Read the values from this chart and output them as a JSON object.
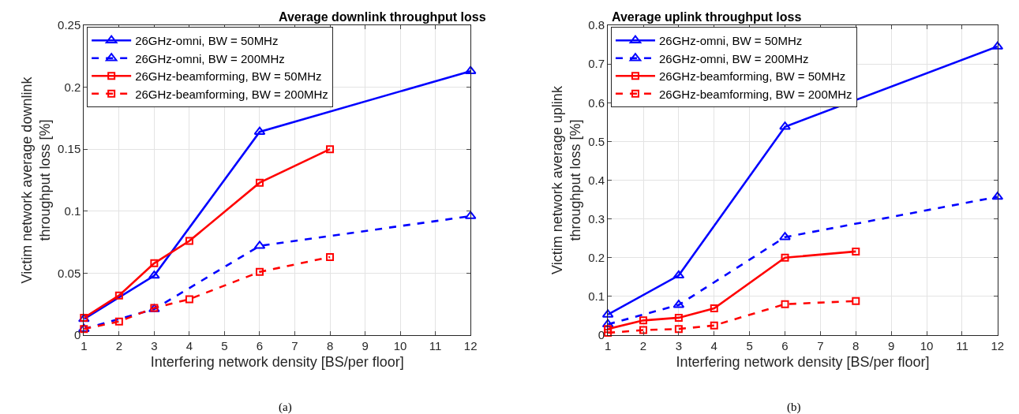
{
  "chart_data": [
    {
      "type": "line",
      "title": "Average downlink throughput loss",
      "xlabel": "Interfering network density [BS/per floor]",
      "ylabel": "Victim network average downlink\nthroughput loss [%]",
      "xlim": [
        1,
        12
      ],
      "xticks": [
        1,
        2,
        3,
        4,
        5,
        6,
        7,
        8,
        9,
        10,
        11,
        12
      ],
      "ylim": [
        0,
        0.25
      ],
      "yticks": [
        0,
        0.05,
        0.1,
        0.15,
        0.2,
        0.25
      ],
      "grid": true,
      "legend": "top left",
      "annotations": [
        "(a)"
      ],
      "series": [
        {
          "name": "26GHz-omni, BW = 50MHz",
          "color": "#0000ff",
          "marker": "triangle",
          "line_style": "solid",
          "x": [
            1,
            3,
            6,
            12
          ],
          "values": [
            0.013,
            0.048,
            0.164,
            0.213
          ]
        },
        {
          "name": "26GHz-omni, BW = 200MHz",
          "color": "#0000ff",
          "marker": "triangle",
          "line_style": "dashed",
          "x": [
            1,
            3,
            6,
            12
          ],
          "values": [
            0.005,
            0.021,
            0.072,
            0.096
          ]
        },
        {
          "name": "26GHz-beamforming, BW = 50MHz",
          "color": "#ff0000",
          "marker": "square",
          "line_style": "solid",
          "x": [
            1,
            2,
            3,
            4,
            6,
            8
          ],
          "values": [
            0.014,
            0.032,
            0.058,
            0.076,
            0.123,
            0.15
          ]
        },
        {
          "name": "26GHz-beamforming, BW = 200MHz",
          "color": "#ff0000",
          "marker": "square",
          "line_style": "dashed",
          "x": [
            1,
            2,
            3,
            4,
            6,
            8
          ],
          "values": [
            0.005,
            0.011,
            0.022,
            0.029,
            0.051,
            0.063
          ]
        }
      ]
    },
    {
      "type": "line",
      "title": "Average uplink throughput loss",
      "xlabel": "Interfering network density [BS/per floor]",
      "ylabel": "Victim network average uplink\nthroughput loss [%]",
      "xlim": [
        1,
        12
      ],
      "xticks": [
        1,
        2,
        3,
        4,
        5,
        6,
        7,
        8,
        9,
        10,
        11,
        12
      ],
      "ylim": [
        0,
        0.8
      ],
      "yticks": [
        0,
        0.1,
        0.2,
        0.3,
        0.4,
        0.5,
        0.6,
        0.7,
        0.8
      ],
      "grid": true,
      "legend": "top left",
      "annotations": [
        "(b)"
      ],
      "series": [
        {
          "name": "26GHz-omni, BW = 50MHz",
          "color": "#0000ff",
          "marker": "triangle",
          "line_style": "solid",
          "x": [
            1,
            3,
            6,
            12
          ],
          "values": [
            0.053,
            0.154,
            0.538,
            0.745
          ]
        },
        {
          "name": "26GHz-omni, BW = 200MHz",
          "color": "#0000ff",
          "marker": "triangle",
          "line_style": "dashed",
          "x": [
            1,
            3,
            6,
            12
          ],
          "values": [
            0.028,
            0.078,
            0.253,
            0.357
          ]
        },
        {
          "name": "26GHz-beamforming, BW = 50MHz",
          "color": "#ff0000",
          "marker": "square",
          "line_style": "solid",
          "x": [
            1,
            2,
            3,
            4,
            6,
            8
          ],
          "values": [
            0.016,
            0.038,
            0.045,
            0.069,
            0.2,
            0.216
          ]
        },
        {
          "name": "26GHz-beamforming, BW = 200MHz",
          "color": "#ff0000",
          "marker": "square",
          "line_style": "dashed",
          "x": [
            1,
            2,
            3,
            4,
            6,
            8
          ],
          "values": [
            0.006,
            0.013,
            0.016,
            0.025,
            0.08,
            0.088
          ]
        }
      ]
    }
  ]
}
